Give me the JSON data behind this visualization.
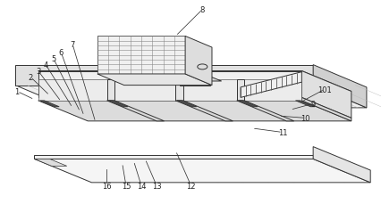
{
  "bg_color": "#ffffff",
  "line_color": "#333333",
  "figsize": [
    4.27,
    2.3
  ],
  "dpi": 100,
  "annotations": [
    [
      "1",
      [
        0.045,
        0.45
      ],
      [
        0.09,
        0.49
      ]
    ],
    [
      "2",
      [
        0.08,
        0.38
      ],
      [
        0.13,
        0.47
      ]
    ],
    [
      "3",
      [
        0.1,
        0.35
      ],
      [
        0.16,
        0.5
      ]
    ],
    [
      "4",
      [
        0.12,
        0.32
      ],
      [
        0.19,
        0.53
      ]
    ],
    [
      "5",
      [
        0.14,
        0.29
      ],
      [
        0.21,
        0.55
      ]
    ],
    [
      "6",
      [
        0.16,
        0.26
      ],
      [
        0.22,
        0.57
      ]
    ],
    [
      "7",
      [
        0.19,
        0.22
      ],
      [
        0.25,
        0.6
      ]
    ],
    [
      "8",
      [
        0.53,
        0.05
      ],
      [
        0.46,
        0.18
      ]
    ],
    [
      "9",
      [
        0.82,
        0.51
      ],
      [
        0.76,
        0.54
      ]
    ],
    [
      "101",
      [
        0.85,
        0.44
      ],
      [
        0.79,
        0.5
      ]
    ],
    [
      "10",
      [
        0.8,
        0.58
      ],
      [
        0.73,
        0.57
      ]
    ],
    [
      "11",
      [
        0.74,
        0.65
      ],
      [
        0.66,
        0.63
      ]
    ],
    [
      "12",
      [
        0.5,
        0.91
      ],
      [
        0.46,
        0.74
      ]
    ],
    [
      "13",
      [
        0.41,
        0.91
      ],
      [
        0.38,
        0.78
      ]
    ],
    [
      "14",
      [
        0.37,
        0.91
      ],
      [
        0.35,
        0.79
      ]
    ],
    [
      "15",
      [
        0.33,
        0.91
      ],
      [
        0.32,
        0.8
      ]
    ],
    [
      "16",
      [
        0.28,
        0.91
      ],
      [
        0.28,
        0.82
      ]
    ]
  ]
}
